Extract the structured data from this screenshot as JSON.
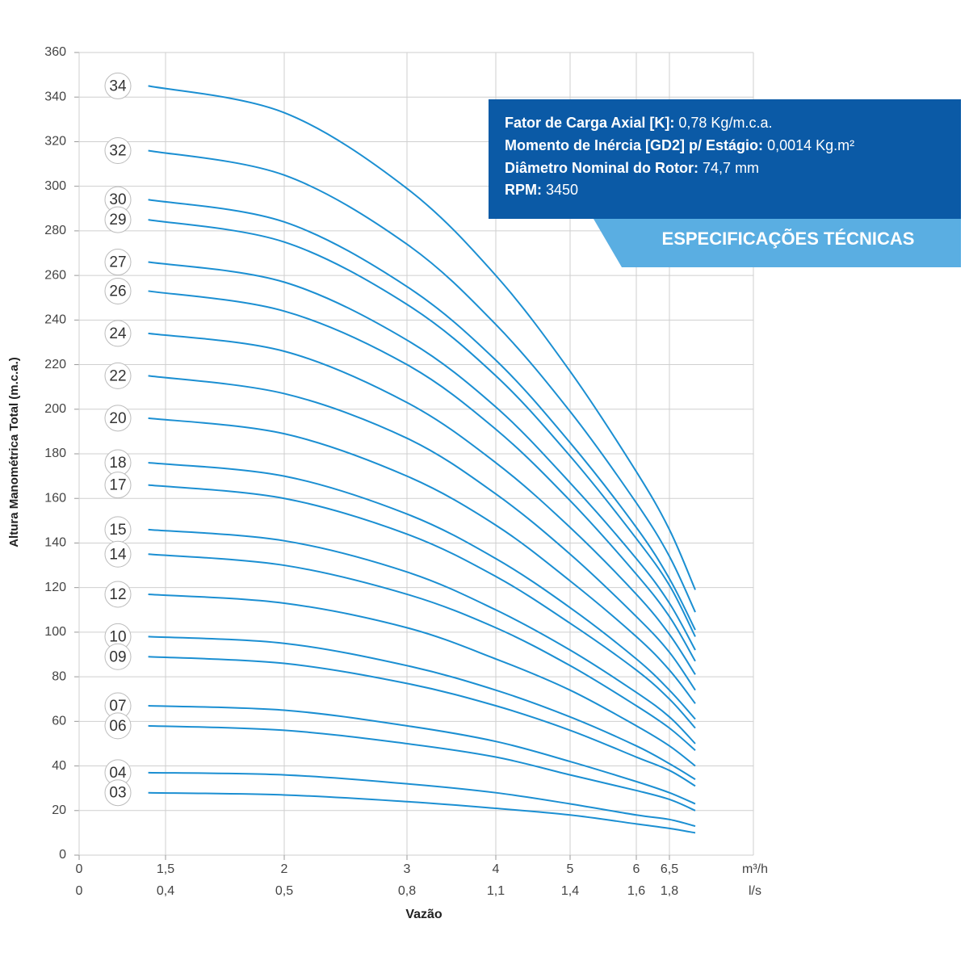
{
  "chart_data": {
    "type": "line",
    "y_label": "Altura Manométrica Total (m.c.a.)",
    "x_label": "Vazão",
    "x_unit": "m³/h",
    "x2_unit": "l/s",
    "ylim": [
      0,
      360
    ],
    "yticks": [
      0,
      20,
      40,
      60,
      80,
      100,
      120,
      140,
      160,
      180,
      200,
      220,
      240,
      260,
      280,
      300,
      320,
      340,
      360
    ],
    "xlim": [
      0,
      7.8
    ],
    "xticks": [
      0,
      {
        "value": 1.5,
        "label": "1,5"
      },
      2,
      3,
      4,
      5,
      6,
      {
        "value": 6.5,
        "label": "6,5"
      }
    ],
    "x2ticks": [
      0,
      {
        "value": 0.4,
        "label": "0,4"
      },
      {
        "value": 0.5,
        "label": "0,5"
      },
      {
        "value": 0.8,
        "label": "0,8"
      },
      {
        "value": 1.1,
        "label": "1,1"
      },
      {
        "value": 1.4,
        "label": "1,4"
      },
      {
        "value": 1.6,
        "label": "1,6"
      },
      {
        "value": 1.8,
        "label": "1,8"
      }
    ],
    "grid": true,
    "x": [
      1.2,
      2,
      3,
      4,
      5,
      6,
      6.5,
      6.9
    ],
    "series": [
      {
        "name": "34",
        "color": "#1b8fd2",
        "values": [
          345,
          333,
          299,
          260,
          217,
          172,
          146,
          119
        ]
      },
      {
        "name": "32",
        "color": "#1b8fd2",
        "values": [
          316,
          305,
          274,
          238,
          199,
          158,
          134,
          109
        ]
      },
      {
        "name": "30",
        "color": "#1b8fd2",
        "values": [
          294,
          284,
          255,
          222,
          185,
          147,
          124,
          101
        ]
      },
      {
        "name": "29",
        "color": "#1b8fd2",
        "values": [
          285,
          275,
          247,
          215,
          179,
          142,
          121,
          98
        ]
      },
      {
        "name": "27",
        "color": "#1b8fd2",
        "values": [
          266,
          257,
          231,
          201,
          167,
          133,
          113,
          92
        ]
      },
      {
        "name": "26",
        "color": "#1b8fd2",
        "values": [
          253,
          244,
          220,
          191,
          159,
          126,
          107,
          87
        ]
      },
      {
        "name": "24",
        "color": "#1b8fd2",
        "values": [
          234,
          226,
          203,
          176,
          147,
          117,
          99,
          81
        ]
      },
      {
        "name": "22",
        "color": "#1b8fd2",
        "values": [
          215,
          207,
          187,
          162,
          135,
          107,
          91,
          74
        ]
      },
      {
        "name": "20",
        "color": "#1b8fd2",
        "values": [
          196,
          189,
          170,
          148,
          123,
          98,
          83,
          68
        ]
      },
      {
        "name": "18",
        "color": "#1b8fd2",
        "values": [
          176,
          170,
          153,
          133,
          111,
          88,
          74,
          61
        ]
      },
      {
        "name": "17",
        "color": "#1b8fd2",
        "values": [
          166,
          160,
          144,
          125,
          104,
          83,
          70,
          57
        ]
      },
      {
        "name": "15",
        "color": "#1b8fd2",
        "values": [
          146,
          141,
          127,
          110,
          92,
          73,
          62,
          50
        ]
      },
      {
        "name": "14",
        "color": "#1b8fd2",
        "values": [
          135,
          130,
          117,
          102,
          85,
          67,
          57,
          47
        ]
      },
      {
        "name": "12",
        "color": "#1b8fd2",
        "values": [
          117,
          113,
          102,
          88,
          74,
          58,
          49,
          40
        ]
      },
      {
        "name": "10",
        "color": "#1b8fd2",
        "values": [
          98,
          95,
          85,
          74,
          62,
          49,
          41,
          34
        ]
      },
      {
        "name": "09",
        "color": "#1b8fd2",
        "values": [
          89,
          86,
          77,
          67,
          56,
          44,
          38,
          31
        ]
      },
      {
        "name": "07",
        "color": "#1b8fd2",
        "values": [
          67,
          65,
          58,
          51,
          42,
          33,
          28,
          23
        ]
      },
      {
        "name": "06",
        "color": "#1b8fd2",
        "values": [
          58,
          56,
          50,
          44,
          36,
          29,
          25,
          20
        ]
      },
      {
        "name": "04",
        "color": "#1b8fd2",
        "values": [
          37,
          36,
          32,
          28,
          23,
          18,
          16,
          13
        ]
      },
      {
        "name": "03",
        "color": "#1b8fd2",
        "values": [
          28,
          27,
          24,
          21,
          18,
          14,
          12,
          10
        ]
      }
    ]
  },
  "specs": {
    "lines": [
      {
        "label": "Fator de Carga Axial [K]:",
        "value": "0,78 Kg/m.c.a."
      },
      {
        "label": "Momento de Inércia [GD2] p/ Estágio:",
        "value": "0,0014 Kg.m²"
      },
      {
        "label": "Diâmetro Nominal do Rotor:",
        "value": "74,7 mm"
      },
      {
        "label": "RPM:",
        "value": "3450"
      }
    ],
    "banner": "ESPECIFICAÇÕES TÉCNICAS"
  }
}
